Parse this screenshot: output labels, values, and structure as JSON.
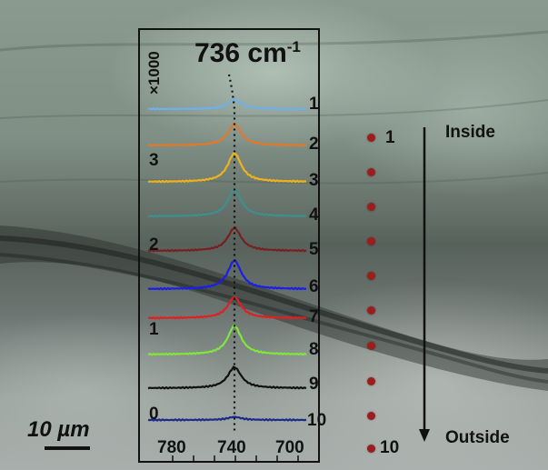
{
  "peak_label": "736 cm",
  "peak_label_sup": "-1",
  "y_multiplier": "×1000",
  "y_ticks": [
    "0",
    "1",
    "2",
    "3"
  ],
  "x_ticks": [
    "780",
    "740",
    "700"
  ],
  "spectra_labels": [
    "1",
    "2",
    "3",
    "4",
    "5",
    "6",
    "7",
    "8",
    "9",
    "10"
  ],
  "spectra_colors": [
    "#6fb0e8",
    "#e07a2a",
    "#f0b21c",
    "#3f8f8c",
    "#7a1f1f",
    "#1a1ee8",
    "#e02020",
    "#7ee83a",
    "#111111",
    "#1c2a8a"
  ],
  "spectra_peak_levels": [
    0.25,
    0.55,
    0.75,
    0.7,
    0.6,
    0.75,
    0.55,
    0.75,
    0.55,
    0.08
  ],
  "sample_points": [
    "1",
    "10"
  ],
  "inside_label": "Inside",
  "outside_label": "Outside",
  "scale_label": "10 µm"
}
